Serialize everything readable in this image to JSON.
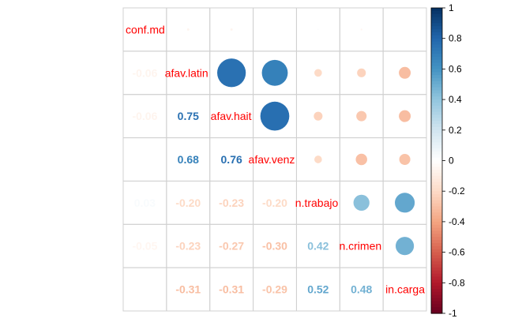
{
  "chart_data": {
    "type": "heatmap",
    "variables": [
      "conf.md",
      "afav.latin",
      "afav.hait",
      "afav.venz",
      "n.trabajo",
      "n.crimen",
      "in.carga"
    ],
    "matrix": [
      [
        1.0,
        -0.06,
        -0.06,
        0.01,
        0.03,
        -0.05,
        0.0
      ],
      [
        -0.06,
        1.0,
        0.75,
        0.68,
        -0.2,
        -0.23,
        -0.31
      ],
      [
        -0.06,
        0.75,
        1.0,
        0.76,
        -0.23,
        -0.27,
        -0.31
      ],
      [
        0.01,
        0.68,
        0.76,
        1.0,
        -0.2,
        -0.3,
        -0.29
      ],
      [
        0.03,
        -0.2,
        -0.23,
        -0.2,
        1.0,
        0.42,
        0.52
      ],
      [
        -0.05,
        -0.23,
        -0.27,
        -0.3,
        0.42,
        1.0,
        0.48
      ],
      [
        0.0,
        -0.31,
        -0.31,
        -0.29,
        0.52,
        0.48,
        1.0
      ]
    ],
    "lower_labels": [
      [
        "-0.06"
      ],
      [
        "-0.06",
        "0.75"
      ],
      [
        "",
        "0.68",
        "0.76"
      ],
      [
        "0.03",
        "-0.20",
        "-0.23",
        "-0.20"
      ],
      [
        "-0.05",
        "-0.23",
        "-0.27",
        "-0.30",
        "0.42"
      ],
      [
        "",
        "-0.31",
        "-0.31",
        "-0.29",
        "0.52",
        "0.48"
      ]
    ],
    "colorbar": {
      "min": -1,
      "max": 1,
      "ticks": [
        "1",
        "0.8",
        "0.6",
        "0.4",
        "0.2",
        "0",
        "-0.2",
        "-0.4",
        "-0.6",
        "-0.8",
        "-1"
      ]
    },
    "upper": "circle",
    "lower": "number",
    "colors": {
      "neg_strong": "#67001f",
      "neg_mid": "#d6604d",
      "neutral": "#ffffff",
      "pos_mid": "#4393c3",
      "pos_strong": "#053061",
      "label": "#ff0000"
    }
  }
}
